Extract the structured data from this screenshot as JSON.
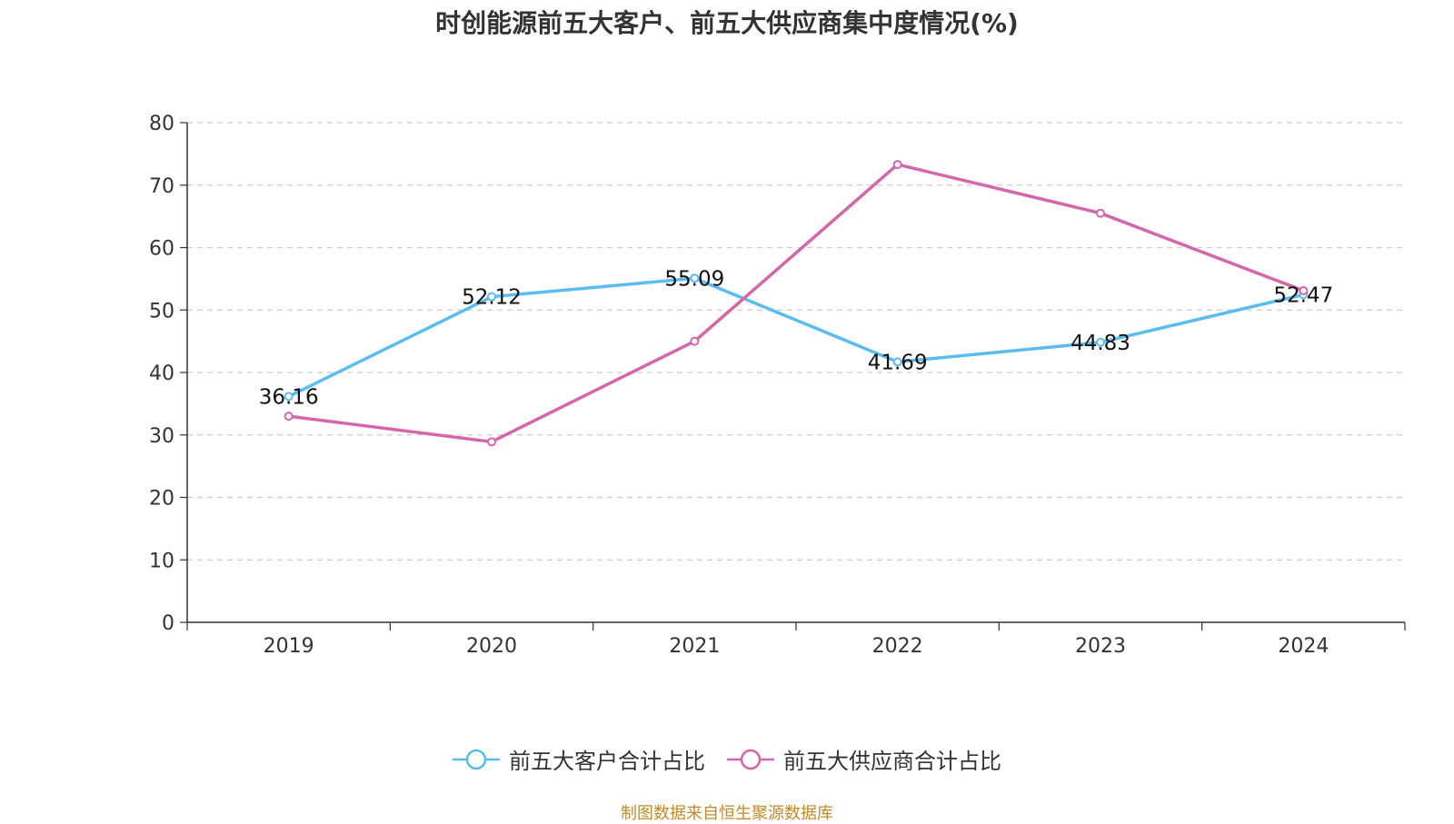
{
  "chart_data": {
    "type": "line",
    "title": "时创能源前五大客户、前五大供应商集中度情况(%)",
    "categories": [
      "2019",
      "2020",
      "2021",
      "2022",
      "2023",
      "2024"
    ],
    "ylim": [
      0,
      80
    ],
    "yticks": [
      0,
      10,
      20,
      30,
      40,
      50,
      60,
      70,
      80
    ],
    "grid": true,
    "legend_position": "bottom",
    "series": [
      {
        "name": "前五大客户合计占比",
        "color": "#5bbcf0",
        "values": [
          36.16,
          52.12,
          55.09,
          41.69,
          44.83,
          52.47
        ],
        "labels": [
          "36.16",
          "52.12",
          "55.09",
          "41.69",
          "44.83",
          "52.47"
        ]
      },
      {
        "name": "前五大供应商合计占比",
        "color": "#d466a9",
        "values": [
          33.0,
          28.9,
          45.0,
          73.3,
          65.5,
          53.1
        ]
      }
    ]
  },
  "source": "制图数据来自恒生聚源数据库"
}
